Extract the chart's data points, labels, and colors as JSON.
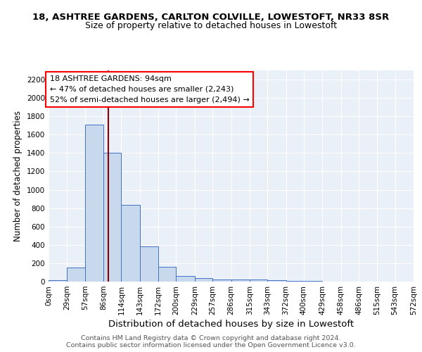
{
  "title1": "18, ASHTREE GARDENS, CARLTON COLVILLE, LOWESTOFT, NR33 8SR",
  "title2": "Size of property relative to detached houses in Lowestoft",
  "xlabel": "Distribution of detached houses by size in Lowestoft",
  "ylabel": "Number of detached properties",
  "annotation_line1": "18 ASHTREE GARDENS: 94sqm",
  "annotation_line2": "← 47% of detached houses are smaller (2,243)",
  "annotation_line3": "52% of semi-detached houses are larger (2,494) →",
  "property_size": 94,
  "bin_edges": [
    0,
    29,
    57,
    86,
    114,
    143,
    172,
    200,
    229,
    257,
    286,
    315,
    343,
    372,
    400,
    429,
    458,
    486,
    515,
    543,
    572
  ],
  "bar_values": [
    15,
    155,
    1710,
    1400,
    835,
    385,
    160,
    65,
    35,
    25,
    25,
    25,
    15,
    10,
    5,
    2,
    2,
    1,
    1,
    1
  ],
  "bar_color": "#c9d9ed",
  "bar_edge_color": "#4472c4",
  "vline_color": "#8b0000",
  "vline_x": 94,
  "ylim": [
    0,
    2300
  ],
  "yticks": [
    0,
    200,
    400,
    600,
    800,
    1000,
    1200,
    1400,
    1600,
    1800,
    2000,
    2200
  ],
  "background_color": "#eaf0f8",
  "footer1": "Contains HM Land Registry data © Crown copyright and database right 2024.",
  "footer2": "Contains public sector information licensed under the Open Government Licence v3.0.",
  "title1_fontsize": 9.5,
  "title2_fontsize": 9,
  "annotation_fontsize": 8,
  "axis_fontsize": 7.5,
  "xlabel_fontsize": 9.5,
  "ylabel_fontsize": 8.5,
  "footer_fontsize": 6.8
}
